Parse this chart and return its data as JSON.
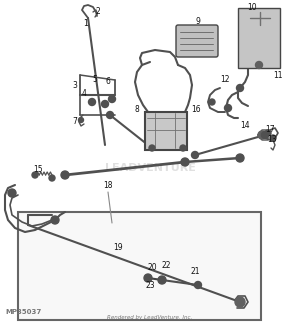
{
  "bg_color": "#ffffff",
  "line_color": "#505050",
  "line_color_light": "#808080",
  "label_color": "#111111",
  "label_fontsize": 5.5,
  "watermark_text": "LEADVENTURE",
  "watermark_color": "#e0e0e0",
  "bottom_left_text": "MP35037",
  "bottom_center_text": "Rendered by LeadVenture, Inc.",
  "bottom_text_color": "#777777",
  "inset_border_color": "#666666",
  "inset_bg_color": "#f8f8f8"
}
